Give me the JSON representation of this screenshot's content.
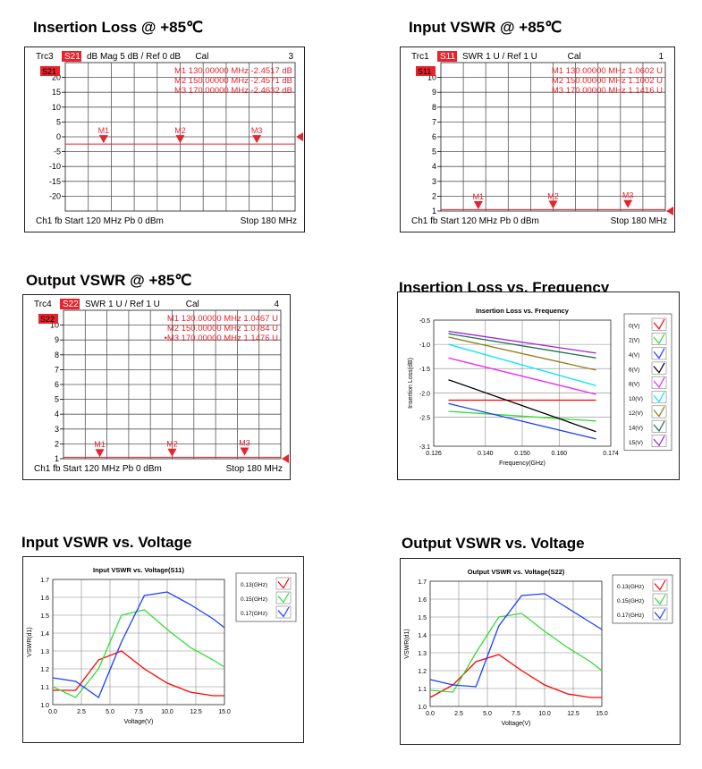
{
  "sections": {
    "il85": "Insertion Loss @ +85℃",
    "in85": "Input VSWR @ +85℃",
    "out85": "Output VSWR @ +85℃",
    "ilf": "Insertion Loss vs. Frequency",
    "invv": "Input VSWR vs. Voltage",
    "outv": "Output VSWR vs. Voltage"
  },
  "chart_data": [
    {
      "id": "va1",
      "type": "line",
      "panel_title": "Insertion Loss @ +85℃",
      "header": {
        "trace": "Trc3",
        "param": "S21",
        "settings": "dB Mag  5 dB /  Ref 0 dB",
        "cal": "Cal",
        "num": "3"
      },
      "badge": "S21",
      "footer": {
        "left": "Ch1  fb  Start  120 MHz  Pb   0 dBm",
        "right": "Stop  180 MHz"
      },
      "yticks": [
        20,
        15,
        10,
        5,
        0,
        -5,
        -10,
        -15,
        -20
      ],
      "ylim": [
        -25,
        25
      ],
      "xlim": [
        120,
        180
      ],
      "markers": [
        {
          "label": "M1",
          "readout": "M1   130.00000  MHz   -2.4517  dB",
          "x": 130,
          "y": -2.4517
        },
        {
          "label": "M2",
          "readout": "M2   150.00000  MHz   -2.4571  dB",
          "x": 150,
          "y": -2.4571
        },
        {
          "label": "M3",
          "readout": "M3   170.00000  MHz   -2.4632  dB",
          "x": 170,
          "y": -2.4632
        }
      ],
      "trace_y": -2.46,
      "ref_y": 0
    },
    {
      "id": "va2",
      "type": "line",
      "panel_title": "Input VSWR @ +85℃",
      "header": {
        "trace": "Trc1",
        "param": "S11",
        "settings": "SWR  1 U /  Ref 1 U",
        "cal": "Cal",
        "num": "1"
      },
      "badge": "S11",
      "footer": {
        "left": "Ch1  fb  Start  120 MHz  Pb   0 dBm",
        "right": "Stop  180 MHz"
      },
      "yticks": [
        10,
        9,
        8,
        7,
        6,
        5,
        4,
        3,
        2,
        1
      ],
      "ylim": [
        1,
        11
      ],
      "xlim": [
        120,
        180
      ],
      "markers": [
        {
          "label": "M1",
          "readout": "M1   130.00000  MHz   1.0602  U",
          "x": 130,
          "y": 1.0602
        },
        {
          "label": "M2",
          "readout": "M2   150.00000  MHz   1.1002  U",
          "x": 150,
          "y": 1.1002
        },
        {
          "label": "M3",
          "readout": "M3   170.00000  MHz   1.1416  U",
          "x": 170,
          "y": 1.1416
        }
      ],
      "trace_y": 1.1,
      "ref_y": 1
    },
    {
      "id": "va3",
      "type": "line",
      "panel_title": "Output VSWR @ +85℃",
      "header": {
        "trace": "Trc4",
        "param": "S22",
        "settings": "SWR  1 U /  Ref 1 U",
        "cal": "Cal",
        "num": "4"
      },
      "badge": "S22",
      "footer": {
        "left": "Ch1  fb  Start  120 MHz  Pb   0 dBm",
        "right": "Stop  180 MHz"
      },
      "yticks": [
        10,
        9,
        8,
        7,
        6,
        5,
        4,
        3,
        2,
        1
      ],
      "ylim": [
        1,
        11
      ],
      "xlim": [
        120,
        180
      ],
      "markers": [
        {
          "label": "M1",
          "readout": "M1   130.00000  MHz   1.0467  U",
          "x": 130,
          "y": 1.0467
        },
        {
          "label": "M2",
          "readout": "M2   150.00000  MHz   1.0784  U",
          "x": 150,
          "y": 1.0784
        },
        {
          "label": "M3",
          "readout": "•M3   170.00000  MHz   1.1476  U",
          "x": 170,
          "y": 1.1476
        }
      ],
      "trace_y": 1.1,
      "ref_y": 1
    },
    {
      "id": "ilf",
      "type": "line",
      "title": "Insertion Loss vs. Frequency",
      "xlabel": "Frequency(GHz)",
      "ylabel": "Insertion Loss(dB)",
      "xlim": [
        0.126,
        0.174
      ],
      "ylim": [
        -3.1,
        -0.5
      ],
      "xticks": [
        "0.126",
        "0.140",
        "0.150",
        "0.160",
        "0.174"
      ],
      "yticks": [
        "-0.5",
        "-1.0",
        "-1.5",
        "-2.0",
        "-2.5",
        "-3.1"
      ],
      "x": [
        0.13,
        0.17
      ],
      "series": [
        {
          "name": "0(V)",
          "color": "#ff0000",
          "values": [
            -2.15,
            -2.15
          ]
        },
        {
          "name": "2(V)",
          "color": "#33dd33",
          "values": [
            -2.38,
            -2.58
          ]
        },
        {
          "name": "4(V)",
          "color": "#1a3fff",
          "values": [
            -2.22,
            -2.95
          ]
        },
        {
          "name": "6(V)",
          "color": "#000000",
          "values": [
            -1.73,
            -2.8
          ]
        },
        {
          "name": "8(V)",
          "color": "#ee22ee",
          "values": [
            -1.28,
            -2.03
          ]
        },
        {
          "name": "10(V)",
          "color": "#00e5ff",
          "values": [
            -1.0,
            -1.85
          ]
        },
        {
          "name": "12(V)",
          "color": "#8b7d10",
          "values": [
            -0.85,
            -1.53
          ]
        },
        {
          "name": "14(V)",
          "color": "#1d6e52",
          "values": [
            -0.78,
            -1.28
          ]
        },
        {
          "name": "15(V)",
          "color": "#a020e0",
          "values": [
            -0.73,
            -1.18
          ]
        }
      ]
    },
    {
      "id": "invv",
      "type": "line",
      "title": "Input VSWR vs. Voltage(S11)",
      "xlabel": "Voltage(V)",
      "ylabel": "VSWR(d1)",
      "xlim": [
        0,
        15
      ],
      "ylim": [
        1.0,
        1.7
      ],
      "xticks": [
        "0.0",
        "2.5",
        "5.0",
        "7.5",
        "10.0",
        "12.5",
        "15.0"
      ],
      "yticks": [
        "1.7",
        "1.6",
        "1.5",
        "1.4",
        "1.3",
        "1.2",
        "1.1",
        "1.0"
      ],
      "x": [
        0,
        2,
        4,
        6,
        8,
        10,
        12,
        14,
        15
      ],
      "series": [
        {
          "name": "0.13(GHz)",
          "color": "#ff0000",
          "values": [
            1.08,
            1.08,
            1.25,
            1.3,
            1.2,
            1.12,
            1.07,
            1.05,
            1.05
          ]
        },
        {
          "name": "0.15(GHz)",
          "color": "#33dd33",
          "values": [
            1.1,
            1.04,
            1.2,
            1.5,
            1.53,
            1.42,
            1.32,
            1.25,
            1.21
          ]
        },
        {
          "name": "0.17(GHz)",
          "color": "#1a3fff",
          "values": [
            1.15,
            1.13,
            1.04,
            1.35,
            1.61,
            1.63,
            1.56,
            1.48,
            1.43
          ]
        }
      ]
    },
    {
      "id": "outv",
      "type": "line",
      "title": "Output VSWR vs. Voltage(S22)",
      "xlabel": "Voltage(V)",
      "ylabel": "VSWR(d1)",
      "xlim": [
        0,
        15
      ],
      "ylim": [
        1.0,
        1.7
      ],
      "xticks": [
        "0.0",
        "2.5",
        "5.0",
        "7.5",
        "10.0",
        "12.5",
        "15.0"
      ],
      "yticks": [
        "1.7",
        "1.6",
        "1.5",
        "1.4",
        "1.3",
        "1.2",
        "1.1",
        "1.0"
      ],
      "x": [
        0,
        2,
        4,
        6,
        8,
        10,
        12,
        14,
        15
      ],
      "series": [
        {
          "name": "0.13(GHz)",
          "color": "#ff0000",
          "values": [
            1.05,
            1.12,
            1.25,
            1.29,
            1.2,
            1.12,
            1.07,
            1.05,
            1.05
          ]
        },
        {
          "name": "0.15(GHz)",
          "color": "#33dd33",
          "values": [
            1.09,
            1.08,
            1.3,
            1.5,
            1.52,
            1.42,
            1.33,
            1.25,
            1.2
          ]
        },
        {
          "name": "0.17(GHz)",
          "color": "#1a3fff",
          "values": [
            1.15,
            1.12,
            1.11,
            1.45,
            1.62,
            1.63,
            1.55,
            1.47,
            1.43
          ]
        }
      ]
    }
  ]
}
